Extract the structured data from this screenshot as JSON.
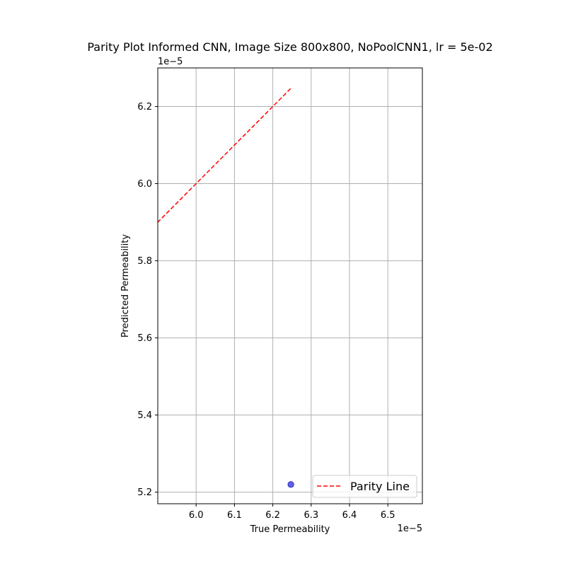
{
  "chart_data": {
    "type": "scatter",
    "title": "Parity Plot Informed CNN, Image Size 800x800, NoPoolCNN1, lr = 5e-02",
    "xlabel": "True Permeability",
    "ylabel": "Predicted Permeability",
    "x_offset_label": "1e−5",
    "y_offset_label": "1e−5",
    "x_scale": 1e-05,
    "y_scale": 1e-05,
    "xlim": [
      5.9e-05,
      6.59e-05
    ],
    "ylim": [
      5.17e-05,
      6.3e-05
    ],
    "x_ticks": [
      6e-05,
      6.1e-05,
      6.2e-05,
      6.3e-05,
      6.4e-05,
      6.5e-05
    ],
    "x_tick_labels": [
      "6.0",
      "6.1",
      "6.2",
      "6.3",
      "6.4",
      "6.5"
    ],
    "y_ticks": [
      5.2e-05,
      5.4e-05,
      5.6e-05,
      5.8e-05,
      6e-05,
      6.2e-05
    ],
    "y_tick_labels": [
      "5.2",
      "5.4",
      "5.6",
      "5.8",
      "6.0",
      "6.2"
    ],
    "grid": true,
    "points": [
      {
        "x": 6.247e-05,
        "y": 5.22e-05
      }
    ],
    "point_color": "#4545e6",
    "parity_line_color": "#ff0000",
    "legend": {
      "location": "lower-right",
      "entries": [
        {
          "label": "Parity Line",
          "style": "dashed",
          "color": "#ff0000"
        }
      ]
    }
  }
}
